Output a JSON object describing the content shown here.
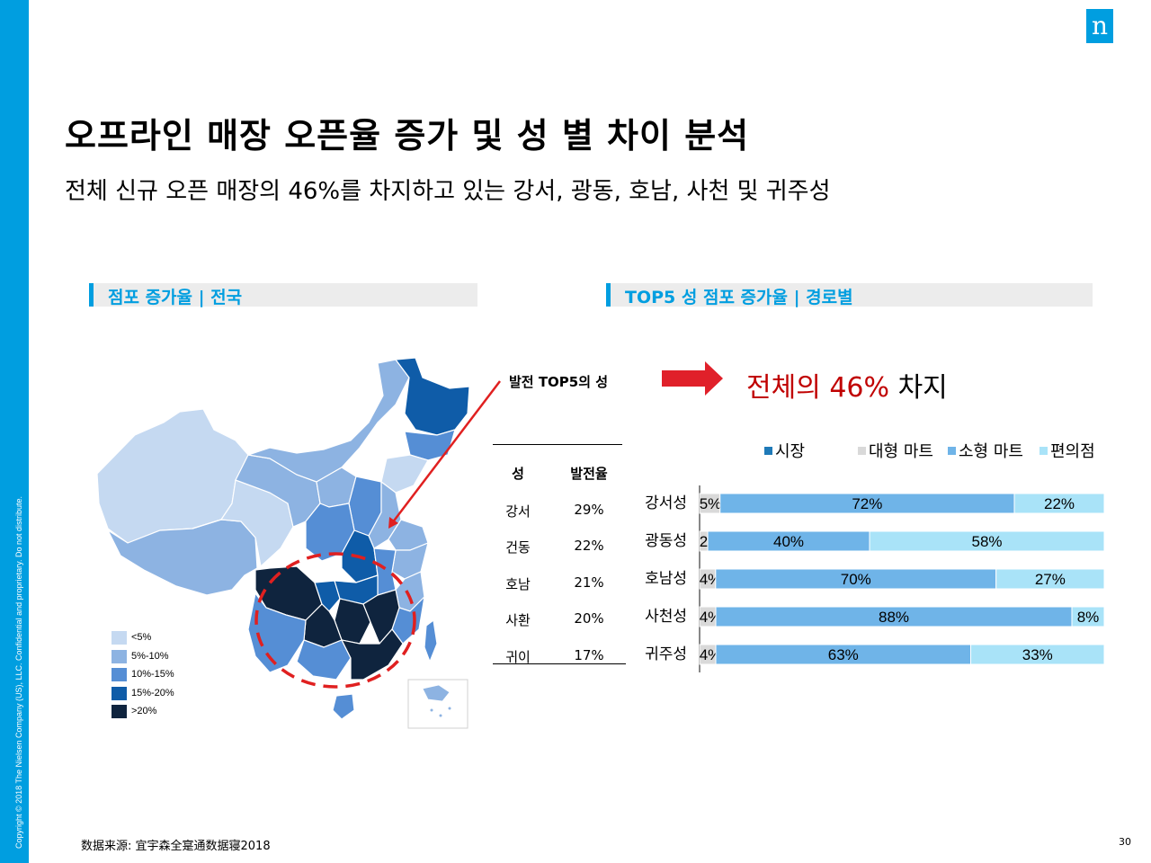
{
  "sidebar": {
    "copyright": "Copyright © 2018 The Nielsen Company (US), LLC. Confidential and proprietary. Do not distribute."
  },
  "logo": {
    "letter": "n"
  },
  "title": "오프라인 매장 오픈율 증가 및 성 별 차이 분석",
  "subtitle": "전체 신규 오픈 매장의 46%를 차지하고 있는 강서, 광동, 호남, 사천 및 귀주성",
  "left_panel": {
    "title": "점포 증가율 | 전국"
  },
  "right_panel": {
    "title": "TOP5 성 점포 증가율 | 경로별"
  },
  "map": {
    "legend": [
      {
        "label": "<5%",
        "color": "#c5d9f1"
      },
      {
        "label": "5%-10%",
        "color": "#8db3e2"
      },
      {
        "label": "10%-15%",
        "color": "#558ed5"
      },
      {
        "label": "15%-20%",
        "color": "#0f5ca8"
      },
      {
        "label": ">20%",
        "color": "#0f243e"
      }
    ]
  },
  "callout": {
    "label": "발전 TOP5의 성"
  },
  "highlight": {
    "prefix": "전체의 46%",
    "suffix": " 차지"
  },
  "table": {
    "headers": [
      "성",
      "발전율"
    ],
    "rows": [
      [
        "강서",
        "29%"
      ],
      [
        "건동",
        "22%"
      ],
      [
        "호남",
        "21%"
      ],
      [
        "사환",
        "20%"
      ],
      [
        "귀이",
        "17%"
      ]
    ]
  },
  "chart_data": {
    "type": "bar",
    "orientation": "horizontal-stacked-100",
    "categories": [
      "강서성",
      "광동성",
      "호남성",
      "사천성",
      "귀주성"
    ],
    "series": [
      {
        "name": "시장",
        "color": "#1f7ab8",
        "values": [
          0,
          0,
          0,
          0,
          0
        ]
      },
      {
        "name": "대형 마트",
        "color": "#d9d9d9",
        "values": [
          5,
          2,
          4,
          4,
          4
        ]
      },
      {
        "name": "소형 마트",
        "color": "#6fb4e8",
        "values": [
          72,
          40,
          70,
          88,
          63
        ]
      },
      {
        "name": "편의점",
        "color": "#a9e3f8",
        "values": [
          22,
          58,
          27,
          8,
          33
        ]
      }
    ],
    "labels": [
      [
        "5%",
        "72%",
        "22%"
      ],
      [
        "2%",
        "40%",
        "58%"
      ],
      [
        "4%",
        "70%",
        "27%"
      ],
      [
        "4%",
        "88%",
        "8%"
      ],
      [
        "4%",
        "63%",
        "33%"
      ]
    ],
    "legend_position": "top",
    "grid": false
  },
  "footer": {
    "source": "数据来源:  宜宇森全寔通数据寝2018",
    "page": "30"
  }
}
